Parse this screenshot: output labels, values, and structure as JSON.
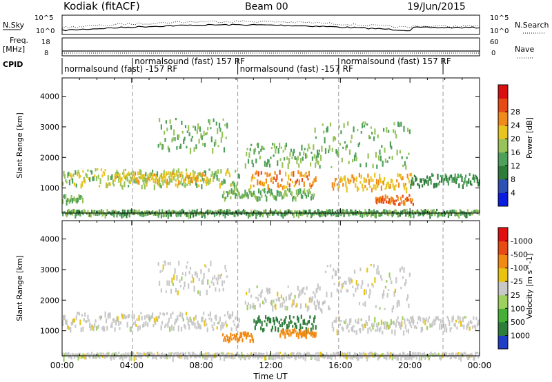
{
  "header": {
    "site": "Kodiak (fitACF)",
    "beam": "Beam 00",
    "date": "19/Jun/2015"
  },
  "strips": {
    "nsky_label": "N.Sky",
    "nsearch_label": "N.Search",
    "freq_label_1": "Freq.",
    "freq_label_2": "[MHz]",
    "nave_label": "Nave",
    "cpid_label": "CPID",
    "nsky_ticks": [
      "10^5",
      "10^0"
    ],
    "nsearch_ticks": [
      "10^5",
      "10^0"
    ],
    "freq_ticks": [
      "18",
      "8"
    ],
    "nave_ticks": [
      "60",
      "0"
    ],
    "cpid_segments": [
      {
        "label": "normalsound (fast) -157 RF",
        "start": 0.0,
        "end": 4.05
      },
      {
        "label": "normalsound (fast) 157 RF",
        "start": 4.05,
        "end": 10.1
      },
      {
        "label": "normalsound (fast) -157 RF",
        "start": 10.1,
        "end": 15.9
      },
      {
        "label": "normalsound (fast) 157 RF",
        "start": 15.9,
        "end": 21.9
      }
    ]
  },
  "chart_data": [
    {
      "type": "heatmap",
      "title": "",
      "xlabel": "",
      "ylabel": "Slant Range [km]",
      "xlim": [
        0,
        24
      ],
      "ylim": [
        180,
        4600
      ],
      "yticks": [
        1000,
        2000,
        3000,
        4000
      ],
      "colorbar": {
        "label": "Power [dB]",
        "ticks": [
          "4",
          "8",
          "12",
          "16",
          "20",
          "24",
          "28"
        ],
        "colors": [
          "#0b1ee0",
          "#2e4fb4",
          "#2f7c3a",
          "#4ea05a",
          "#98c35a",
          "#e8c420",
          "#f08a1a",
          "#e84a14",
          "#d81010"
        ]
      },
      "features": [
        {
          "x_start": 0.0,
          "x_end": 24.0,
          "range_start": 180,
          "range_end": 320,
          "value": 12
        },
        {
          "x_start": 0.0,
          "x_end": 1.2,
          "range_start": 600,
          "range_end": 800,
          "value": 14
        },
        {
          "x_start": 0.0,
          "x_end": 10.2,
          "range_start": 1100,
          "range_end": 1650,
          "value": 16
        },
        {
          "x_start": 3.0,
          "x_end": 8.5,
          "range_start": 1250,
          "range_end": 1550,
          "value": 20
        },
        {
          "x_start": 5.5,
          "x_end": 9.5,
          "range_start": 2300,
          "range_end": 3300,
          "value": 14
        },
        {
          "x_start": 9.2,
          "x_end": 14.5,
          "range_start": 700,
          "range_end": 1000,
          "value": 14
        },
        {
          "x_start": 10.8,
          "x_end": 14.6,
          "range_start": 1050,
          "range_end": 1600,
          "value": 24
        },
        {
          "x_start": 10.5,
          "x_end": 14.8,
          "range_start": 1800,
          "range_end": 2500,
          "value": 14
        },
        {
          "x_start": 14.5,
          "x_end": 20.0,
          "range_start": 1700,
          "range_end": 3200,
          "value": 14
        },
        {
          "x_start": 15.5,
          "x_end": 20.2,
          "range_start": 1000,
          "range_end": 1500,
          "value": 22
        },
        {
          "x_start": 18.0,
          "x_end": 20.2,
          "range_start": 500,
          "range_end": 800,
          "value": 26
        },
        {
          "x_start": 20.0,
          "x_end": 24.0,
          "range_start": 1100,
          "range_end": 1500,
          "value": 10
        }
      ]
    },
    {
      "type": "heatmap",
      "title": "",
      "xlabel": "Time UT",
      "ylabel": "Slant Range [km]",
      "xlim": [
        0,
        24
      ],
      "ylim": [
        180,
        4600
      ],
      "xticks": [
        "00:00",
        "04:00",
        "08:00",
        "12:00",
        "16:00",
        "20:00",
        "00:00"
      ],
      "yticks": [
        1000,
        2000,
        3000,
        4000
      ],
      "colorbar": {
        "label": "Velocity [m s^-1]",
        "ticks": [
          "1000",
          "500",
          "100",
          "25",
          "-25",
          "-100",
          "-500",
          "-1000"
        ],
        "colors": [
          "#1e3ec8",
          "#2e7d3a",
          "#45b035",
          "#9ed060",
          "#c8c8c8",
          "#e8c410",
          "#f08a12",
          "#e84a14",
          "#e01010"
        ]
      },
      "features": [
        {
          "x_start": 0.0,
          "x_end": 24.0,
          "range_start": 180,
          "range_end": 320,
          "value": 0
        },
        {
          "x_start": 0.0,
          "x_end": 10.2,
          "range_start": 1100,
          "range_end": 1650,
          "value": 0
        },
        {
          "x_start": 5.5,
          "x_end": 9.5,
          "range_start": 2300,
          "range_end": 3300,
          "value": 0
        },
        {
          "x_start": 9.2,
          "x_end": 11.0,
          "range_start": 700,
          "range_end": 1000,
          "value": -150
        },
        {
          "x_start": 11.0,
          "x_end": 14.6,
          "range_start": 1050,
          "range_end": 1550,
          "value": 400
        },
        {
          "x_start": 12.5,
          "x_end": 14.6,
          "range_start": 900,
          "range_end": 1100,
          "value": -150
        },
        {
          "x_start": 10.5,
          "x_end": 14.8,
          "range_start": 1800,
          "range_end": 2500,
          "value": 0
        },
        {
          "x_start": 14.5,
          "x_end": 20.0,
          "range_start": 1700,
          "range_end": 3200,
          "value": 0
        },
        {
          "x_start": 15.5,
          "x_end": 20.2,
          "range_start": 1000,
          "range_end": 1500,
          "value": 0
        },
        {
          "x_start": 20.0,
          "x_end": 24.0,
          "range_start": 1100,
          "range_end": 1500,
          "value": 0
        }
      ]
    }
  ]
}
